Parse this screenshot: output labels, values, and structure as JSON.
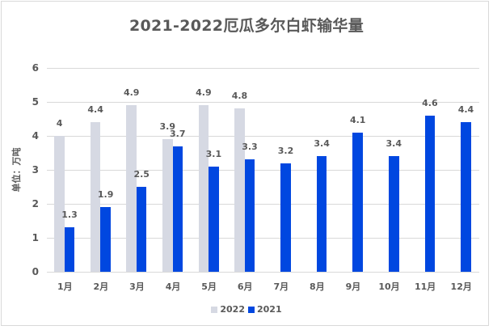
{
  "chart_data": {
    "type": "bar",
    "title": "2021-2022厄瓜多尔白虾输华量",
    "xlabel": "",
    "ylabel": "单位：万吨",
    "ylim": [
      0,
      6
    ],
    "yticks": [
      "0",
      "1",
      "2",
      "3",
      "4",
      "5",
      "6"
    ],
    "grid": true,
    "legend_position": "bottom",
    "categories": [
      "1月",
      "2月",
      "3月",
      "4月",
      "5月",
      "6月",
      "7月",
      "8月",
      "9月",
      "10月",
      "11月",
      "12月"
    ],
    "series": [
      {
        "name": "2022",
        "color": "#d6d9e3",
        "values": [
          4,
          4.4,
          4.9,
          3.9,
          4.9,
          4.8,
          null,
          null,
          null,
          null,
          null,
          null
        ]
      },
      {
        "name": "2021",
        "color": "#0047e0",
        "values": [
          1.3,
          1.9,
          2.5,
          3.7,
          3.1,
          3.3,
          3.2,
          3.4,
          4.1,
          3.4,
          4.6,
          4.4
        ]
      }
    ]
  }
}
